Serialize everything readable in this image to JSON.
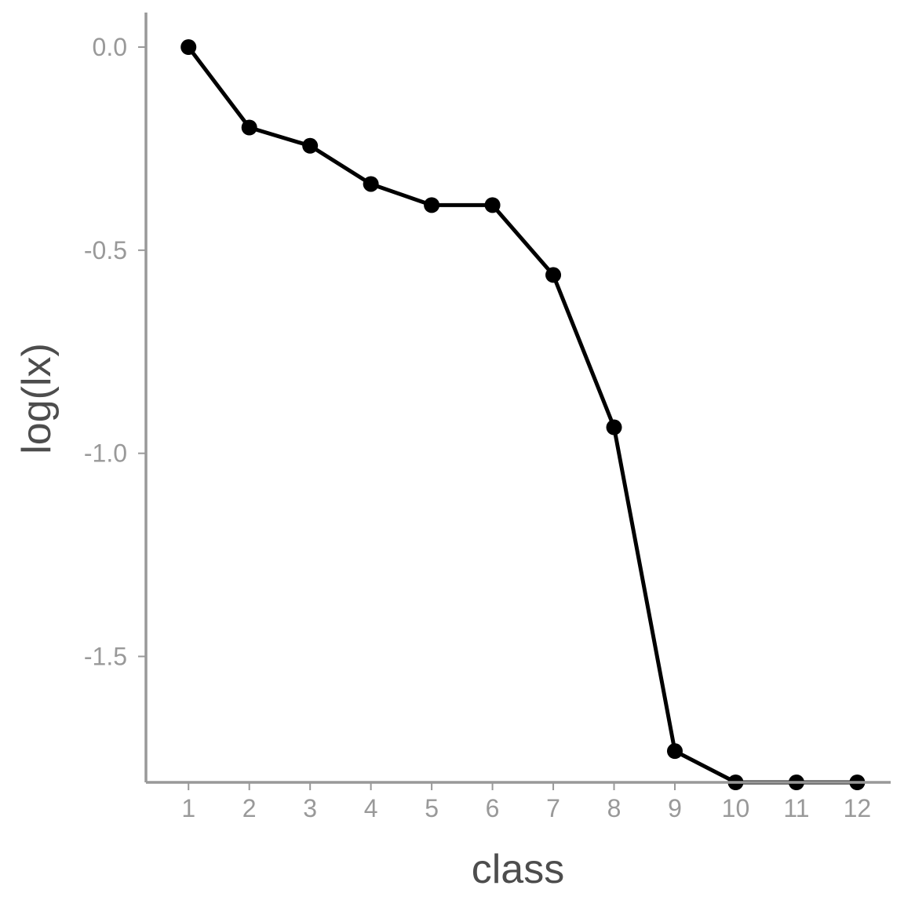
{
  "chart_data": {
    "type": "line",
    "xlabel": "class",
    "ylabel": "log(lx)",
    "x": [
      1,
      2,
      3,
      4,
      5,
      6,
      7,
      8,
      9,
      10,
      11,
      12
    ],
    "x_tick_labels": [
      "1",
      "2",
      "3",
      "4",
      "5",
      "6",
      "7",
      "8",
      "9",
      "10",
      "11",
      "12"
    ],
    "y_ticks": [
      0.0,
      -0.5,
      -1.0,
      -1.5
    ],
    "y_tick_labels": [
      "0.0",
      "-0.5",
      "-1.0",
      "-1.5"
    ],
    "xlim": [
      0.3,
      12.55
    ],
    "ylim": [
      -1.81,
      0.085
    ],
    "grid": false,
    "colors": {
      "line": "#000000",
      "axis": "#999999",
      "tick_text": "#999999",
      "title_text": "#4d4d4d"
    },
    "series": [
      {
        "values": [
          0.0,
          -0.198,
          -0.243,
          -0.337,
          -0.389,
          -0.389,
          -0.561,
          -0.936,
          -1.733,
          -1.81,
          -1.81,
          -1.81
        ]
      }
    ]
  }
}
